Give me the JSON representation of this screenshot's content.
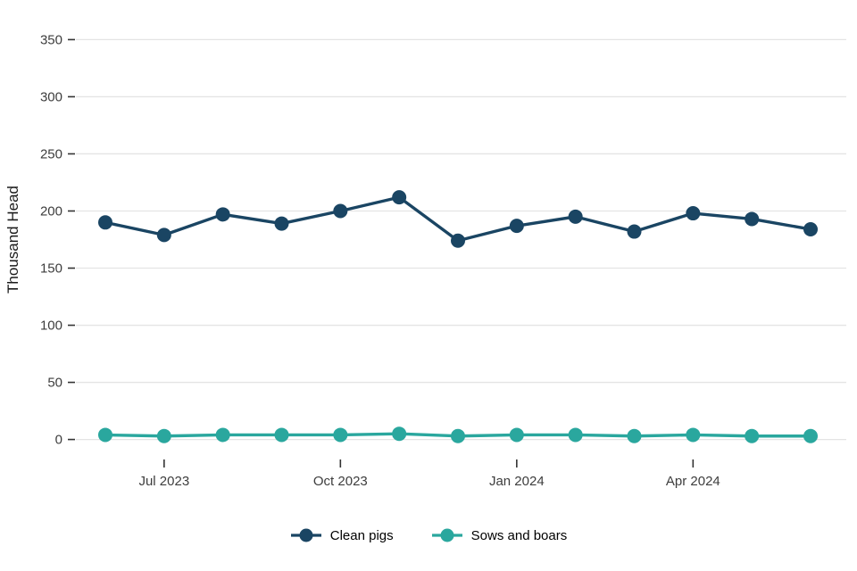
{
  "chart_data": {
    "type": "line",
    "x": [
      "Jun 2023",
      "Jul 2023",
      "Aug 2023",
      "Sep 2023",
      "Oct 2023",
      "Nov 2023",
      "Dec 2023",
      "Jan 2024",
      "Feb 2024",
      "Mar 2024",
      "Apr 2024",
      "May 2024",
      "Jun 2024"
    ],
    "series": [
      {
        "name": "Clean pigs",
        "color": "#1a4563",
        "values": [
          190,
          179,
          197,
          189,
          200,
          212,
          174,
          187,
          195,
          182,
          198,
          193,
          184
        ]
      },
      {
        "name": "Sows and boars",
        "color": "#2aa79e",
        "values": [
          4,
          3,
          4,
          4,
          4,
          5,
          3,
          4,
          4,
          3,
          4,
          3,
          3
        ]
      }
    ],
    "title": "",
    "xlabel": "",
    "ylabel": "Thousand Head",
    "ylim": [
      0,
      350
    ],
    "yticks": [
      0,
      50,
      100,
      150,
      200,
      250,
      300,
      350
    ],
    "xticks": [
      {
        "label": "Jul 2023",
        "index": 1
      },
      {
        "label": "Oct 2023",
        "index": 4
      },
      {
        "label": "Jan 2024",
        "index": 7
      },
      {
        "label": "Apr 2024",
        "index": 10
      }
    ],
    "grid": true,
    "legend_position": "bottom",
    "style": {
      "grid_color": "#e4e4e4",
      "tick_color": "#333333",
      "text_color": "#3d3d3d",
      "title_color": "#1a1a1a",
      "background": "#ffffff"
    }
  }
}
